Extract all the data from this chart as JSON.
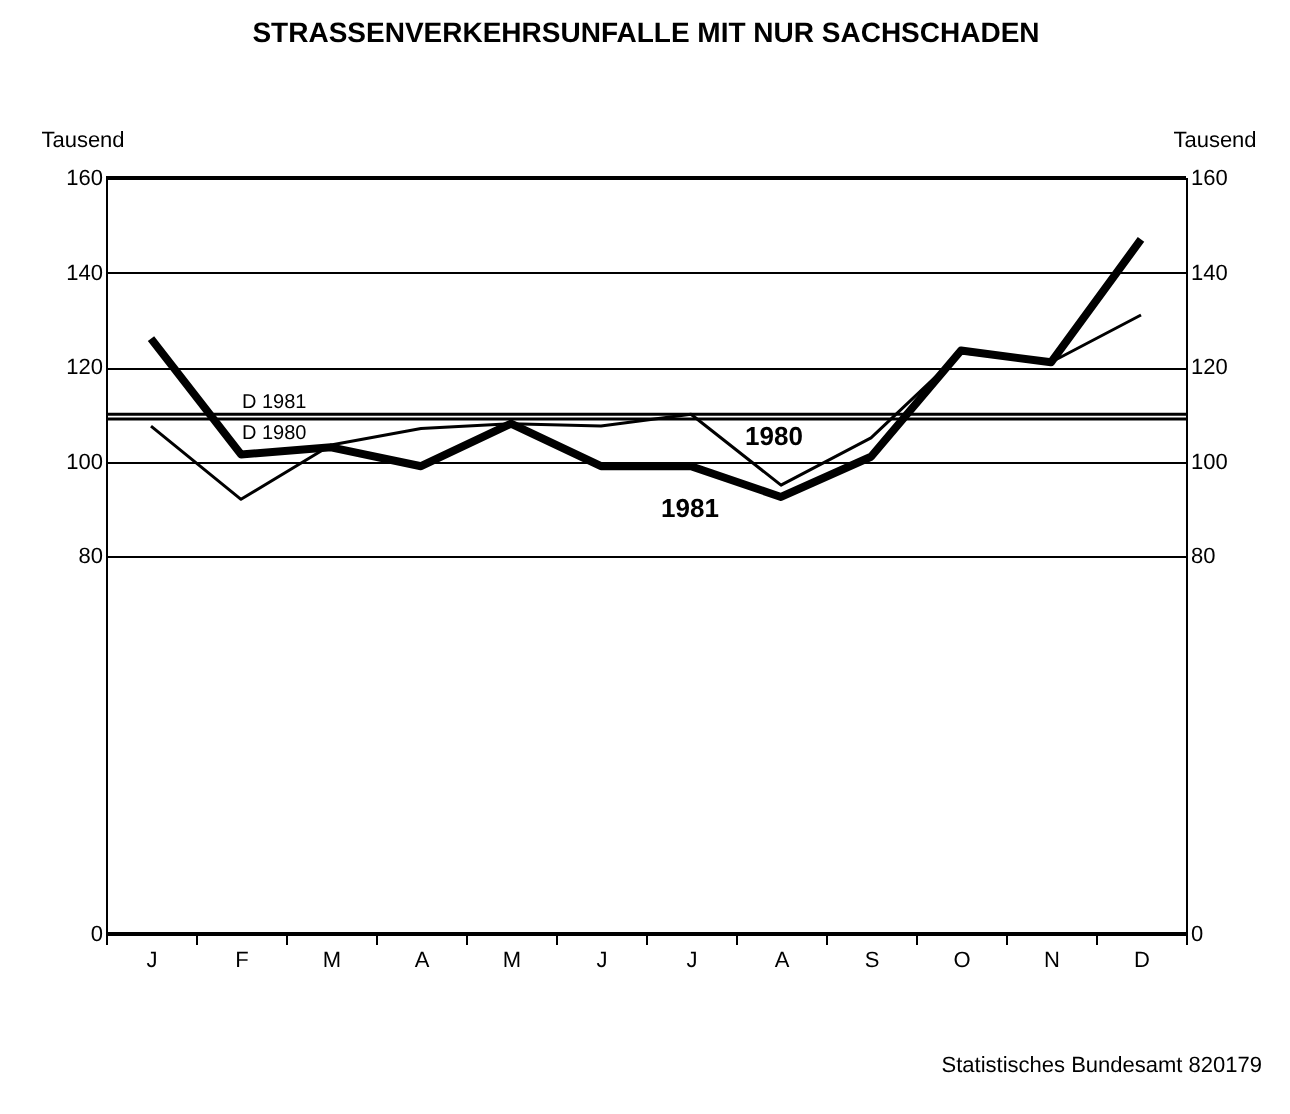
{
  "chart_data": {
    "type": "line",
    "title": "STRASSENVERKEHRSUNFALLE MIT NUR SACHSCHADEN",
    "ylabel": "Tausend",
    "y2label": "Tausend",
    "categories": [
      "J",
      "F",
      "M",
      "A",
      "M",
      "J",
      "J",
      "A",
      "S",
      "O",
      "N",
      "D"
    ],
    "series": [
      {
        "name": "1980",
        "color": "#000000",
        "values": [
          107.5,
          92,
          103.5,
          107,
          108,
          107.5,
          110,
          95,
          105,
          123,
          121,
          131
        ]
      },
      {
        "name": "1981",
        "color": "#000000",
        "values": [
          126,
          101.5,
          103,
          99,
          108,
          99,
          99,
          92.5,
          101,
          123.5,
          121,
          147
        ]
      }
    ],
    "ylim": [
      0,
      160
    ],
    "yticks": [
      0,
      80,
      100,
      120,
      140,
      160
    ],
    "y2lim": [
      0,
      160
    ],
    "y2ticks": [
      0,
      80,
      100,
      120,
      140,
      160
    ],
    "ref_lines": [
      {
        "axis": "y",
        "value": 110,
        "label": "D 1981"
      },
      {
        "axis": "y",
        "value": 109,
        "label": "D 1980"
      }
    ],
    "grid": "y",
    "annotations": [
      "Statistisches Bundesamt 820179"
    ]
  }
}
